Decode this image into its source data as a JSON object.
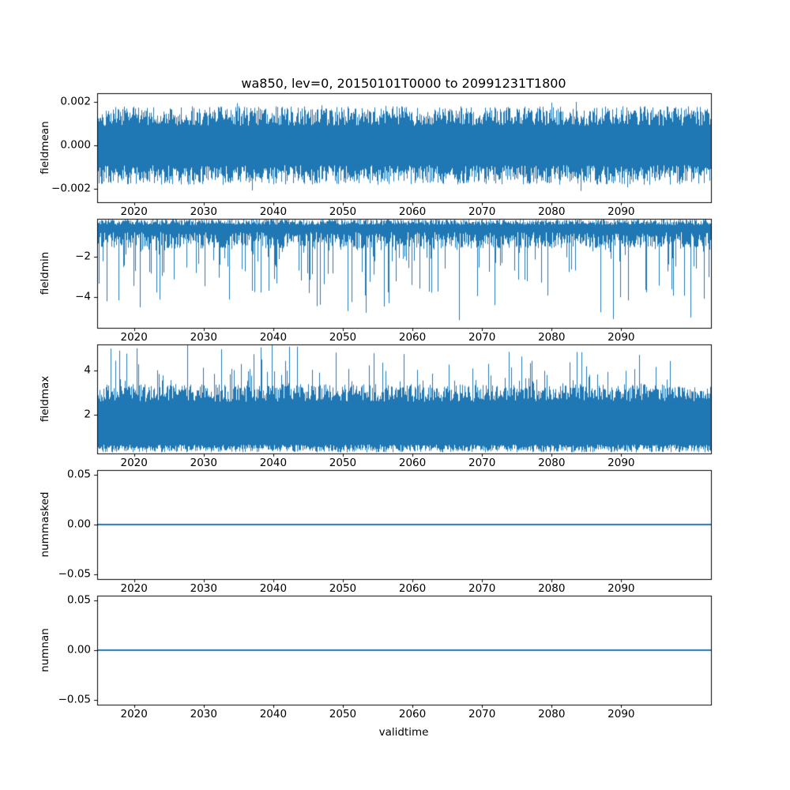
{
  "figure": {
    "title": "wa850, lev=0, 20150101T0000 to 20991231T1800",
    "xlabel": "validtime",
    "background": "#ffffff",
    "line_color": "#1f77b4"
  },
  "chart_data": [
    {
      "type": "line",
      "name": "fieldmean",
      "ylabel": "fieldmean",
      "x_range": [
        2014.7,
        2102.9
      ],
      "xticks": [
        2020,
        2030,
        2040,
        2050,
        2060,
        2070,
        2080,
        2090
      ],
      "xtick_labels": [
        "2020",
        "2030",
        "2040",
        "2050",
        "2060",
        "2070",
        "2080",
        "2090"
      ],
      "ylim": [
        -0.0026,
        0.0024
      ],
      "ytick_values": [
        0.002,
        0.0,
        -0.002
      ],
      "ytick_labels": [
        "0.002",
        "0.000",
        "−0.002"
      ],
      "description": "dense high-frequency noise oscillating about 0; envelope roughly ±0.0018 with occasional excursions to about ±0.0024",
      "series": [
        {
          "name": "fieldmean",
          "color": "#1f77b4",
          "render": "noise-band",
          "seed": 101,
          "top_base": 0.0009,
          "top_jitter": 0.0009,
          "bottom_base": -0.0018,
          "bottom_jitter": 0.0009,
          "spike": "both",
          "spike_prob": 0.06,
          "spike_max": 0.0005
        }
      ]
    },
    {
      "type": "line",
      "name": "fieldmin",
      "ylabel": "fieldmin",
      "x_range": [
        2014.7,
        2102.9
      ],
      "xticks": [
        2020,
        2030,
        2040,
        2050,
        2060,
        2070,
        2080,
        2090
      ],
      "xtick_labels": [
        "2020",
        "2030",
        "2040",
        "2050",
        "2060",
        "2070",
        "2080",
        "2090"
      ],
      "ylim": [
        -5.5,
        -0.15
      ],
      "ytick_values": [
        -2,
        -4
      ],
      "ytick_labels": [
        "−2",
        "−4"
      ],
      "description": "dense noise band near -0.2 to -1.5 with frequent downward spikes, deepest about -5.3",
      "series": [
        {
          "name": "fieldmin",
          "color": "#1f77b4",
          "render": "noise-band",
          "seed": 202,
          "top_base": -0.45,
          "top_jitter": 0.3,
          "bottom_base": -1.6,
          "bottom_jitter": 0.8,
          "spike": "down",
          "spike_prob": 0.22,
          "spike_max": 3.6
        }
      ]
    },
    {
      "type": "line",
      "name": "fieldmax",
      "ylabel": "fieldmax",
      "x_range": [
        2014.7,
        2102.9
      ],
      "xticks": [
        2020,
        2030,
        2040,
        2050,
        2060,
        2070,
        2080,
        2090
      ],
      "xtick_labels": [
        "2020",
        "2030",
        "2040",
        "2050",
        "2060",
        "2070",
        "2080",
        "2090"
      ],
      "ylim": [
        0.25,
        5.2
      ],
      "ytick_values": [
        4,
        2
      ],
      "ytick_labels": [
        "4",
        "2"
      ],
      "description": "dense noise band roughly 0.4 to 3.4 with frequent upward spikes, highest about 5.0",
      "series": [
        {
          "name": "fieldmax",
          "color": "#1f77b4",
          "render": "noise-band",
          "seed": 303,
          "top_base": 2.6,
          "top_jitter": 0.8,
          "bottom_base": 0.3,
          "bottom_jitter": 0.35,
          "spike": "up",
          "spike_prob": 0.16,
          "spike_max": 2.0
        }
      ]
    },
    {
      "type": "line",
      "name": "nummasked",
      "ylabel": "nummasked",
      "x_range": [
        2014.7,
        2102.9
      ],
      "xticks": [
        2020,
        2030,
        2040,
        2050,
        2060,
        2070,
        2080,
        2090
      ],
      "xtick_labels": [
        "2020",
        "2030",
        "2040",
        "2050",
        "2060",
        "2070",
        "2080",
        "2090"
      ],
      "ylim": [
        -0.055,
        0.055
      ],
      "ytick_values": [
        0.05,
        0.0,
        -0.05
      ],
      "ytick_labels": [
        "0.05",
        "0.00",
        "−0.05"
      ],
      "description": "constant value 0.0 across the whole time range",
      "series": [
        {
          "name": "nummasked",
          "color": "#1f77b4",
          "render": "constant",
          "value": 0.0
        }
      ]
    },
    {
      "type": "line",
      "name": "numnan",
      "ylabel": "numnan",
      "x_range": [
        2014.7,
        2102.9
      ],
      "xticks": [
        2020,
        2030,
        2040,
        2050,
        2060,
        2070,
        2080,
        2090
      ],
      "xtick_labels": [
        "2020",
        "2030",
        "2040",
        "2050",
        "2060",
        "2070",
        "2080",
        "2090"
      ],
      "ylim": [
        -0.055,
        0.055
      ],
      "ytick_values": [
        0.05,
        0.0,
        -0.05
      ],
      "ytick_labels": [
        "0.05",
        "0.00",
        "−0.05"
      ],
      "description": "constant value 0.0 across the whole time range",
      "series": [
        {
          "name": "numnan",
          "color": "#1f77b4",
          "render": "constant",
          "value": 0.0
        }
      ]
    }
  ]
}
